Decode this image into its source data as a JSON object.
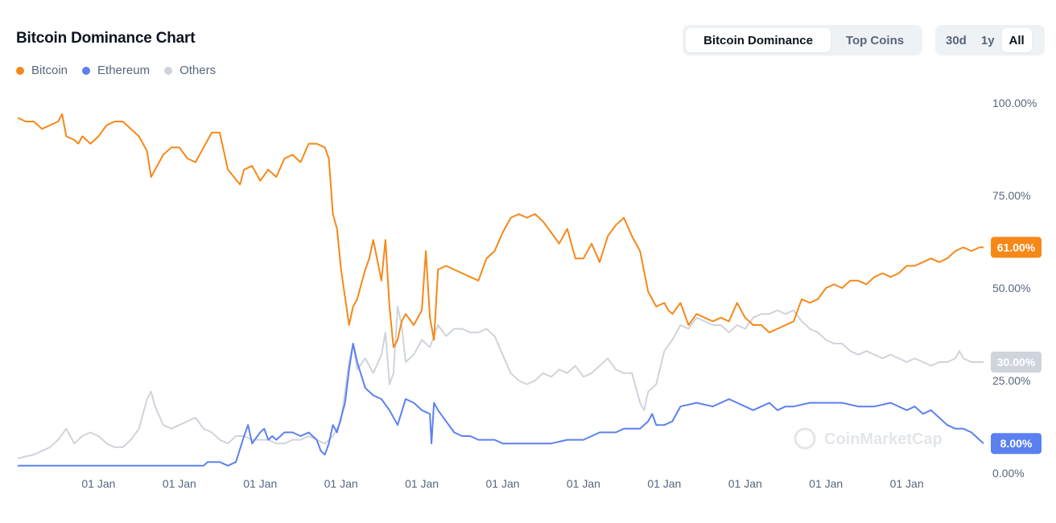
{
  "header": {
    "title": "Bitcoin Dominance Chart",
    "tabs": [
      {
        "label": "Bitcoin Dominance",
        "active": true
      },
      {
        "label": "Top Coins",
        "active": false
      }
    ],
    "ranges": [
      {
        "label": "30d",
        "active": false
      },
      {
        "label": "1y",
        "active": false
      },
      {
        "label": "All",
        "active": true
      }
    ]
  },
  "watermark": "CoinMarketCap",
  "colors": {
    "bitcoin": "#f68819",
    "ethereum": "#5b81f0",
    "others": "#cfd3dc",
    "grid": "#f3f4f6",
    "axis_text": "#58667e"
  },
  "chart_data": {
    "type": "line",
    "title": "Bitcoin Dominance Chart",
    "xlabel": "",
    "ylabel": "",
    "ylim": [
      0,
      100
    ],
    "yticks": [
      "0.00%",
      "25.00%",
      "50.00%",
      "75.00%",
      "100.00%"
    ],
    "ytick_values": [
      0,
      25,
      50,
      75,
      100
    ],
    "y_axis_position": "right",
    "grid": false,
    "legend_position": "top-left",
    "xticks": [
      {
        "label": "01 Jan",
        "x": 1
      },
      {
        "label": "01 Jan",
        "x": 2
      },
      {
        "label": "01 Jan",
        "x": 3
      },
      {
        "label": "01 Jan",
        "x": 4
      },
      {
        "label": "01 Jan",
        "x": 5
      },
      {
        "label": "01 Jan",
        "x": 6
      },
      {
        "label": "01 Jan",
        "x": 7
      },
      {
        "label": "01 Jan",
        "x": 8
      },
      {
        "label": "01 Jan",
        "x": 9
      },
      {
        "label": "01 Jan",
        "x": 10
      },
      {
        "label": "01 Jan",
        "x": 11
      }
    ],
    "xlim": [
      0,
      11.95
    ],
    "series": [
      {
        "name": "Bitcoin",
        "color_key": "bitcoin",
        "last_value_label": "61.00%",
        "x": [
          0,
          0.1,
          0.2,
          0.3,
          0.4,
          0.5,
          0.55,
          0.6,
          0.7,
          0.75,
          0.8,
          0.9,
          1.0,
          1.1,
          1.2,
          1.3,
          1.4,
          1.5,
          1.6,
          1.65,
          1.7,
          1.8,
          1.9,
          2.0,
          2.1,
          2.2,
          2.3,
          2.4,
          2.5,
          2.6,
          2.75,
          2.8,
          2.9,
          3.0,
          3.1,
          3.2,
          3.3,
          3.4,
          3.5,
          3.6,
          3.7,
          3.8,
          3.85,
          3.9,
          3.95,
          4.0,
          4.1,
          4.15,
          4.2,
          4.3,
          4.35,
          4.4,
          4.5,
          4.55,
          4.6,
          4.65,
          4.7,
          4.75,
          4.8,
          4.9,
          5.0,
          5.05,
          5.1,
          5.15,
          5.2,
          5.3,
          5.4,
          5.5,
          5.6,
          5.7,
          5.8,
          5.9,
          6.0,
          6.1,
          6.2,
          6.3,
          6.4,
          6.5,
          6.6,
          6.7,
          6.8,
          6.9,
          7.0,
          7.1,
          7.2,
          7.3,
          7.4,
          7.5,
          7.6,
          7.7,
          7.8,
          7.9,
          8.0,
          8.05,
          8.1,
          8.2,
          8.3,
          8.4,
          8.5,
          8.6,
          8.7,
          8.8,
          8.9,
          9.0,
          9.1,
          9.2,
          9.3,
          9.4,
          9.5,
          9.6,
          9.7,
          9.8,
          9.9,
          10.0,
          10.1,
          10.2,
          10.3,
          10.4,
          10.5,
          10.6,
          10.7,
          10.8,
          10.9,
          11.0,
          11.1,
          11.2,
          11.3,
          11.4,
          11.5,
          11.6,
          11.7,
          11.8,
          11.9,
          11.95
        ],
        "values": [
          96,
          95,
          95,
          93,
          94,
          95,
          97,
          91,
          90,
          89,
          91,
          89,
          91,
          94,
          95,
          95,
          93,
          91,
          87,
          80,
          82,
          86,
          88,
          88,
          85,
          84,
          88,
          92,
          92,
          82,
          78,
          82,
          83,
          79,
          82,
          80,
          85,
          86,
          84,
          89,
          89,
          88,
          85,
          70,
          66,
          55,
          40,
          45,
          47,
          55,
          58,
          63,
          52,
          63,
          45,
          34,
          36,
          41,
          43,
          40,
          44,
          60,
          42,
          36,
          55,
          56,
          55,
          54,
          53,
          52,
          58,
          60,
          65,
          69,
          70,
          69,
          70,
          68,
          65,
          62,
          66,
          58,
          58,
          62,
          57,
          64,
          67,
          69,
          64,
          60,
          49,
          45,
          46,
          44,
          43,
          46,
          40,
          43,
          42,
          41,
          42,
          41,
          46,
          42,
          40,
          40,
          38,
          39,
          40,
          41,
          47,
          46,
          47,
          50,
          51,
          50,
          52,
          52,
          51,
          53,
          54,
          53,
          54,
          56,
          56,
          57,
          58,
          57,
          58,
          60,
          61,
          60,
          61,
          61
        ]
      },
      {
        "name": "Ethereum",
        "color_key": "ethereum",
        "last_value_label": "8.00%",
        "x": [
          0,
          2.3,
          2.35,
          2.5,
          2.6,
          2.7,
          2.8,
          2.85,
          2.9,
          3.0,
          3.05,
          3.1,
          3.15,
          3.2,
          3.3,
          3.4,
          3.5,
          3.6,
          3.7,
          3.75,
          3.8,
          3.85,
          3.9,
          3.95,
          4.0,
          4.05,
          4.1,
          4.15,
          4.2,
          4.3,
          4.4,
          4.5,
          4.6,
          4.7,
          4.8,
          4.9,
          5.0,
          5.1,
          5.12,
          5.15,
          5.2,
          5.3,
          5.4,
          5.5,
          5.6,
          5.7,
          5.8,
          5.9,
          6.0,
          6.2,
          6.4,
          6.6,
          6.8,
          7.0,
          7.2,
          7.4,
          7.5,
          7.7,
          7.8,
          7.85,
          7.9,
          8.0,
          8.1,
          8.2,
          8.4,
          8.6,
          8.8,
          9.0,
          9.1,
          9.2,
          9.3,
          9.4,
          9.5,
          9.6,
          9.8,
          10.0,
          10.2,
          10.4,
          10.6,
          10.8,
          11.0,
          11.1,
          11.2,
          11.3,
          11.4,
          11.5,
          11.6,
          11.7,
          11.8,
          11.9,
          11.95
        ],
        "values": [
          2,
          2,
          3,
          3,
          2,
          3,
          10,
          13,
          8,
          11,
          12,
          9,
          10,
          9,
          11,
          11,
          10,
          11,
          9,
          6,
          5,
          8,
          13,
          11,
          15,
          19,
          28,
          35,
          30,
          23,
          21,
          20,
          17,
          13,
          20,
          19,
          17,
          16,
          8,
          19,
          17,
          14,
          11,
          10,
          10,
          9,
          9,
          9,
          8,
          8,
          8,
          8,
          9,
          9,
          11,
          11,
          12,
          12,
          14,
          16,
          13,
          13,
          14,
          18,
          19,
          18,
          20,
          18,
          17,
          18,
          19,
          17,
          18,
          18,
          19,
          19,
          19,
          18,
          18,
          19,
          17,
          18,
          16,
          17,
          15,
          13,
          12,
          12,
          11,
          9,
          8
        ]
      },
      {
        "name": "Others",
        "color_key": "others",
        "last_value_label": "30.00%",
        "x": [
          0,
          0.2,
          0.4,
          0.5,
          0.6,
          0.7,
          0.8,
          0.9,
          1.0,
          1.1,
          1.2,
          1.3,
          1.4,
          1.5,
          1.6,
          1.65,
          1.7,
          1.8,
          1.9,
          2.0,
          2.1,
          2.2,
          2.3,
          2.4,
          2.5,
          2.6,
          2.7,
          2.8,
          2.9,
          3.0,
          3.1,
          3.2,
          3.3,
          3.4,
          3.5,
          3.6,
          3.7,
          3.8,
          3.85,
          3.9,
          4.0,
          4.05,
          4.1,
          4.15,
          4.2,
          4.3,
          4.4,
          4.5,
          4.55,
          4.6,
          4.65,
          4.7,
          4.75,
          4.8,
          4.9,
          5.0,
          5.1,
          5.2,
          5.3,
          5.4,
          5.5,
          5.6,
          5.7,
          5.8,
          5.9,
          6.0,
          6.1,
          6.2,
          6.3,
          6.4,
          6.5,
          6.6,
          6.7,
          6.8,
          6.9,
          7.0,
          7.1,
          7.2,
          7.3,
          7.4,
          7.5,
          7.6,
          7.7,
          7.75,
          7.8,
          7.9,
          8.0,
          8.1,
          8.2,
          8.3,
          8.4,
          8.5,
          8.6,
          8.7,
          8.8,
          8.9,
          9.0,
          9.1,
          9.2,
          9.3,
          9.4,
          9.5,
          9.6,
          9.7,
          9.8,
          9.9,
          10.0,
          10.1,
          10.2,
          10.3,
          10.4,
          10.5,
          10.6,
          10.7,
          10.8,
          10.9,
          11.0,
          11.1,
          11.2,
          11.3,
          11.4,
          11.5,
          11.6,
          11.65,
          11.7,
          11.8,
          11.9,
          11.95
        ],
        "values": [
          4,
          5,
          7,
          9,
          12,
          8,
          10,
          11,
          10,
          8,
          7,
          7,
          9,
          12,
          20,
          22,
          18,
          13,
          12,
          13,
          14,
          15,
          12,
          11,
          9,
          8,
          10,
          10,
          9,
          9,
          9,
          8,
          8,
          9,
          9,
          10,
          9,
          8,
          9,
          10,
          14,
          22,
          30,
          35,
          28,
          31,
          27,
          32,
          38,
          24,
          27,
          45,
          40,
          30,
          32,
          36,
          34,
          40,
          37,
          39,
          39,
          38,
          38,
          39,
          37,
          32,
          27,
          25,
          24,
          25,
          27,
          26,
          28,
          27,
          29,
          26,
          27,
          29,
          31,
          28,
          27,
          27,
          19,
          17,
          22,
          24,
          33,
          36,
          40,
          39,
          42,
          41,
          40,
          40,
          38,
          40,
          39,
          42,
          43,
          43,
          44,
          43,
          44,
          41,
          39,
          38,
          36,
          35,
          35,
          33,
          32,
          33,
          32,
          31,
          32,
          31,
          30,
          31,
          30,
          29,
          30,
          30,
          31,
          33,
          31,
          30,
          30,
          30
        ]
      }
    ]
  }
}
